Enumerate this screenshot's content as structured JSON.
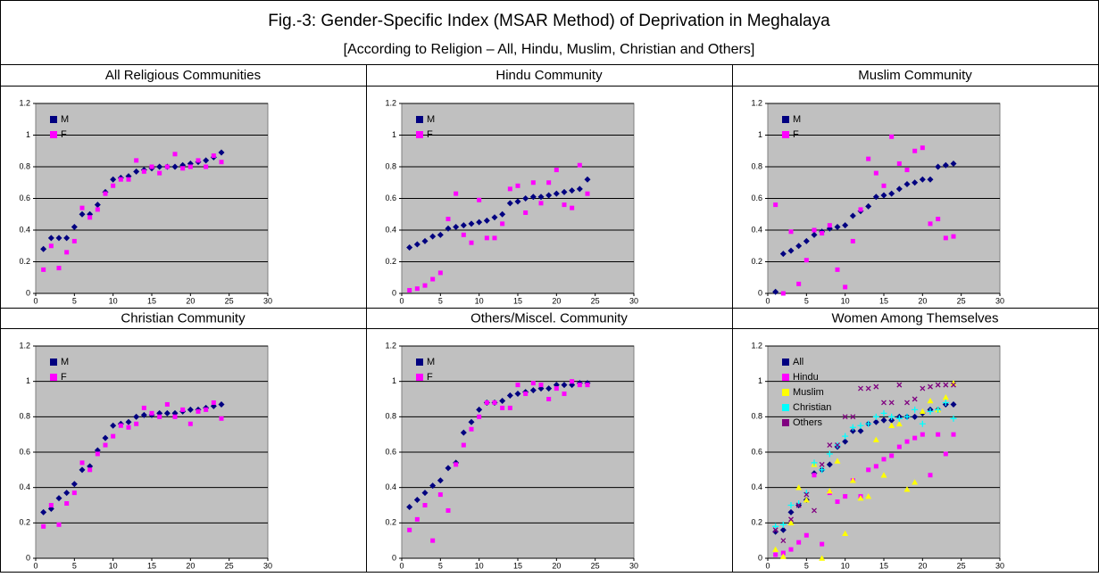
{
  "title": "Fig.-3: Gender-Specific Index (MSAR Method) of Deprivation in Meghalaya",
  "subtitle": "[According to Religion – All, Hindu, Muslim, Christian and Others]",
  "chart_data": [
    {
      "type": "scatter",
      "title": "All Religious Communities",
      "xlim": [
        0,
        30
      ],
      "xticks": [
        0,
        5,
        10,
        15,
        20,
        25,
        30
      ],
      "ylim": [
        0,
        1.2
      ],
      "yticks": [
        0,
        0.2,
        0.4,
        0.6,
        0.8,
        1,
        1.2
      ],
      "grid": true,
      "legend": "upper left",
      "x": [
        1,
        2,
        3,
        4,
        5,
        6,
        7,
        8,
        9,
        10,
        11,
        12,
        13,
        14,
        15,
        16,
        17,
        18,
        19,
        20,
        21,
        22,
        23,
        24
      ],
      "series": [
        {
          "name": "M",
          "color": "#000080",
          "marker": "diamond",
          "values": [
            0.28,
            0.35,
            0.35,
            0.35,
            0.42,
            0.5,
            0.5,
            0.56,
            0.64,
            0.72,
            0.73,
            0.74,
            0.77,
            0.78,
            0.79,
            0.8,
            0.8,
            0.8,
            0.81,
            0.82,
            0.83,
            0.84,
            0.86,
            0.89
          ]
        },
        {
          "name": "F",
          "color": "#ff00ff",
          "marker": "square",
          "values": [
            0.15,
            0.3,
            0.16,
            0.26,
            0.33,
            0.54,
            0.48,
            0.53,
            0.63,
            0.68,
            0.72,
            0.72,
            0.84,
            0.77,
            0.8,
            0.76,
            0.8,
            0.88,
            0.79,
            0.8,
            0.84,
            0.8,
            0.87,
            0.83
          ]
        }
      ]
    },
    {
      "type": "scatter",
      "title": "Hindu Community",
      "xlim": [
        0,
        30
      ],
      "xticks": [
        0,
        5,
        10,
        15,
        20,
        25,
        30
      ],
      "ylim": [
        0,
        1.2
      ],
      "yticks": [
        0,
        0.2,
        0.4,
        0.6,
        0.8,
        1,
        1.2
      ],
      "grid": true,
      "legend": "upper left",
      "x": [
        1,
        2,
        3,
        4,
        5,
        6,
        7,
        8,
        9,
        10,
        11,
        12,
        13,
        14,
        15,
        16,
        17,
        18,
        19,
        20,
        21,
        22,
        23,
        24
      ],
      "series": [
        {
          "name": "M",
          "color": "#000080",
          "marker": "diamond",
          "values": [
            0.29,
            0.31,
            0.33,
            0.36,
            0.37,
            0.41,
            0.42,
            0.43,
            0.44,
            0.45,
            0.46,
            0.48,
            0.5,
            0.57,
            0.58,
            0.6,
            0.61,
            0.61,
            0.62,
            0.63,
            0.64,
            0.65,
            0.66,
            0.72
          ]
        },
        {
          "name": "F",
          "color": "#ff00ff",
          "marker": "square",
          "values": [
            0.02,
            0.03,
            0.05,
            0.09,
            0.13,
            0.47,
            0.63,
            0.37,
            0.32,
            0.59,
            0.35,
            0.35,
            0.44,
            0.66,
            0.68,
            0.51,
            0.7,
            0.57,
            0.7,
            0.78,
            0.56,
            0.54,
            0.81,
            0.63
          ]
        }
      ]
    },
    {
      "type": "scatter",
      "title": "Muslim Community",
      "xlim": [
        0,
        30
      ],
      "xticks": [
        0,
        5,
        10,
        15,
        20,
        25,
        30
      ],
      "ylim": [
        0,
        1.2
      ],
      "yticks": [
        0,
        0.2,
        0.4,
        0.6,
        0.8,
        1,
        1.2
      ],
      "grid": true,
      "legend": "upper left",
      "x": [
        1,
        2,
        3,
        4,
        5,
        6,
        7,
        8,
        9,
        10,
        11,
        12,
        13,
        14,
        15,
        16,
        17,
        18,
        19,
        20,
        21,
        22,
        23,
        24
      ],
      "series": [
        {
          "name": "M",
          "color": "#000080",
          "marker": "diamond",
          "values": [
            0.01,
            0.25,
            0.27,
            0.3,
            0.33,
            0.37,
            0.39,
            0.41,
            0.42,
            0.43,
            0.49,
            0.52,
            0.55,
            0.61,
            0.62,
            0.63,
            0.66,
            0.69,
            0.7,
            0.72,
            0.72,
            0.8,
            0.81,
            0.82
          ]
        },
        {
          "name": "F",
          "color": "#ff00ff",
          "marker": "square",
          "values": [
            0.56,
            0.0,
            0.39,
            0.06,
            0.21,
            0.4,
            0.38,
            0.43,
            0.15,
            0.04,
            0.33,
            0.53,
            0.85,
            0.76,
            0.68,
            0.99,
            0.82,
            0.78,
            0.9,
            0.92,
            0.44,
            0.47,
            0.35,
            0.36
          ]
        }
      ]
    },
    {
      "type": "scatter",
      "title": "Christian Community",
      "xlim": [
        0,
        30
      ],
      "xticks": [
        0,
        5,
        10,
        15,
        20,
        25,
        30
      ],
      "ylim": [
        0,
        1.2
      ],
      "yticks": [
        0,
        0.2,
        0.4,
        0.6,
        0.8,
        1,
        1.2
      ],
      "grid": true,
      "legend": "upper left",
      "x": [
        1,
        2,
        3,
        4,
        5,
        6,
        7,
        8,
        9,
        10,
        11,
        12,
        13,
        14,
        15,
        16,
        17,
        18,
        19,
        20,
        21,
        22,
        23,
        24
      ],
      "series": [
        {
          "name": "M",
          "color": "#000080",
          "marker": "diamond",
          "values": [
            0.26,
            0.28,
            0.34,
            0.37,
            0.42,
            0.5,
            0.52,
            0.61,
            0.68,
            0.75,
            0.76,
            0.77,
            0.8,
            0.81,
            0.81,
            0.82,
            0.82,
            0.82,
            0.83,
            0.84,
            0.84,
            0.85,
            0.86,
            0.87
          ]
        },
        {
          "name": "F",
          "color": "#ff00ff",
          "marker": "square",
          "values": [
            0.18,
            0.3,
            0.19,
            0.31,
            0.37,
            0.54,
            0.5,
            0.59,
            0.64,
            0.69,
            0.75,
            0.74,
            0.76,
            0.85,
            0.82,
            0.8,
            0.87,
            0.8,
            0.84,
            0.76,
            0.83,
            0.84,
            0.88,
            0.79
          ]
        }
      ]
    },
    {
      "type": "scatter",
      "title": "Others/Miscel. Community",
      "xlim": [
        0,
        30
      ],
      "xticks": [
        0,
        5,
        10,
        15,
        20,
        25,
        30
      ],
      "ylim": [
        0,
        1.2
      ],
      "yticks": [
        0,
        0.2,
        0.4,
        0.6,
        0.8,
        1,
        1.2
      ],
      "grid": true,
      "legend": "upper left",
      "x": [
        1,
        2,
        3,
        4,
        5,
        6,
        7,
        8,
        9,
        10,
        11,
        12,
        13,
        14,
        15,
        16,
        17,
        18,
        19,
        20,
        21,
        22,
        23,
        24
      ],
      "series": [
        {
          "name": "M",
          "color": "#000080",
          "marker": "diamond",
          "values": [
            0.29,
            0.33,
            0.37,
            0.41,
            0.44,
            0.51,
            0.54,
            0.71,
            0.77,
            0.84,
            0.88,
            0.88,
            0.89,
            0.92,
            0.93,
            0.94,
            0.95,
            0.96,
            0.96,
            0.98,
            0.98,
            0.98,
            0.99,
            0.99
          ]
        },
        {
          "name": "F",
          "color": "#ff00ff",
          "marker": "square",
          "values": [
            0.16,
            0.22,
            0.3,
            0.1,
            0.36,
            0.27,
            0.53,
            0.64,
            0.73,
            0.8,
            0.88,
            0.88,
            0.85,
            0.85,
            0.98,
            0.93,
            0.99,
            0.98,
            0.9,
            0.96,
            0.93,
            1.0,
            0.98,
            0.98
          ]
        }
      ]
    },
    {
      "type": "scatter",
      "title": "Women Among Themselves",
      "xlim": [
        0,
        30
      ],
      "xticks": [
        0,
        5,
        10,
        15,
        20,
        25,
        30
      ],
      "ylim": [
        0,
        1.2
      ],
      "yticks": [
        0,
        0.2,
        0.4,
        0.6,
        0.8,
        1,
        1.2
      ],
      "grid": true,
      "legend": "upper left",
      "x": [
        1,
        2,
        3,
        4,
        5,
        6,
        7,
        8,
        9,
        10,
        11,
        12,
        13,
        14,
        15,
        16,
        17,
        18,
        19,
        20,
        21,
        22,
        23,
        24
      ],
      "series": [
        {
          "name": "All",
          "color": "#000080",
          "marker": "diamond",
          "values": [
            0.15,
            0.16,
            0.26,
            0.3,
            0.33,
            0.48,
            0.5,
            0.53,
            0.63,
            0.66,
            0.72,
            0.72,
            0.76,
            0.77,
            0.78,
            0.78,
            0.8,
            0.8,
            0.8,
            0.82,
            0.84,
            0.84,
            0.87,
            0.87
          ]
        },
        {
          "name": "Hindu",
          "color": "#ff00ff",
          "marker": "square",
          "values": [
            0.02,
            0.03,
            0.05,
            0.09,
            0.13,
            0.47,
            0.08,
            0.37,
            0.32,
            0.35,
            0.44,
            0.35,
            0.5,
            0.52,
            0.56,
            0.58,
            0.63,
            0.66,
            0.68,
            0.7,
            0.47,
            0.7,
            0.59,
            0.7
          ]
        },
        {
          "name": "Muslim",
          "color": "#ffff00",
          "marker": "triangle",
          "values": [
            0.05,
            0.01,
            0.2,
            0.4,
            0.33,
            0.53,
            0.0,
            0.38,
            0.55,
            0.14,
            0.44,
            0.34,
            0.35,
            0.67,
            0.47,
            0.75,
            0.76,
            0.39,
            0.43,
            0.83,
            0.89,
            0.84,
            0.91,
            0.99
          ]
        },
        {
          "name": "Christian",
          "color": "#00ffff",
          "marker": "plus",
          "values": [
            0.18,
            0.19,
            0.3,
            0.31,
            0.37,
            0.54,
            0.5,
            0.59,
            0.64,
            0.69,
            0.74,
            0.75,
            0.76,
            0.8,
            0.82,
            0.8,
            0.79,
            0.8,
            0.84,
            0.76,
            0.83,
            0.84,
            0.88,
            0.79
          ]
        },
        {
          "name": "Others",
          "color": "#800080",
          "marker": "cross",
          "values": [
            0.16,
            0.1,
            0.22,
            0.3,
            0.36,
            0.27,
            0.53,
            0.64,
            0.64,
            0.8,
            0.8,
            0.96,
            0.96,
            0.97,
            0.88,
            0.88,
            0.98,
            0.88,
            0.9,
            0.96,
            0.97,
            0.98,
            0.98,
            0.98
          ]
        }
      ]
    }
  ]
}
